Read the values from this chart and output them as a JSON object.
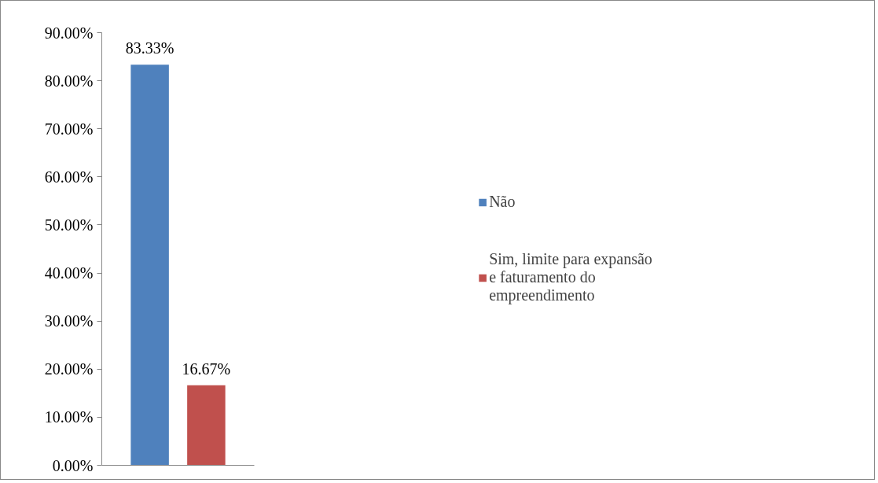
{
  "chart_data": {
    "type": "bar",
    "categories": [
      null
    ],
    "series": [
      {
        "name": "Não",
        "color": "#4f81bd",
        "values": [
          83.33
        ],
        "value_labels": [
          "83.33%"
        ]
      },
      {
        "name": "Sim, limite para expansão e faturamento do empreendimento",
        "color": "#c0504d",
        "values": [
          16.67
        ],
        "value_labels": [
          "16.67%"
        ]
      }
    ],
    "ylim": [
      0,
      90
    ],
    "yticks": [
      {
        "value": 0,
        "label": "0.00%"
      },
      {
        "value": 10,
        "label": "10.00%"
      },
      {
        "value": 20,
        "label": "20.00%"
      },
      {
        "value": 30,
        "label": "30.00%"
      },
      {
        "value": 40,
        "label": "40.00%"
      },
      {
        "value": 50,
        "label": "50.00%"
      },
      {
        "value": 60,
        "label": "60.00%"
      },
      {
        "value": 70,
        "label": "70.00%"
      },
      {
        "value": 80,
        "label": "80.00%"
      },
      {
        "value": 90,
        "label": "90.00%"
      }
    ],
    "grid": false,
    "legend": "right"
  }
}
